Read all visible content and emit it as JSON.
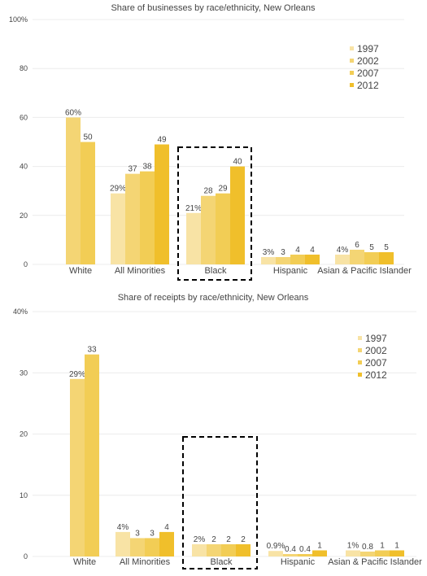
{
  "chart_data": [
    {
      "type": "bar",
      "title": "Share of businesses by race/ethnicity, New Orleans",
      "categories": [
        "White",
        "All Minorities",
        "Black",
        "Hispanic",
        "Asian & Pacific Islander"
      ],
      "series": [
        {
          "name": "1997",
          "values": [
            null,
            29,
            21,
            3,
            4
          ]
        },
        {
          "name": "2002",
          "values": [
            60,
            37,
            28,
            3,
            6
          ]
        },
        {
          "name": "2007",
          "values": [
            50,
            38,
            29,
            4,
            5
          ]
        },
        {
          "name": "2012",
          "values": [
            null,
            49,
            40,
            4,
            5
          ]
        }
      ],
      "value_labels": [
        [
          null,
          "29%",
          "21%",
          "3%",
          "4%"
        ],
        [
          "60%",
          "37",
          "28",
          "3",
          "6"
        ],
        [
          "50",
          "38",
          "29",
          "4",
          "5"
        ],
        [
          null,
          "49",
          "40",
          "4",
          "5"
        ]
      ],
      "y_ticks": [
        0,
        20,
        40,
        60,
        80,
        100
      ],
      "y_tick_labels": [
        "0",
        "20",
        "40",
        "60",
        "80",
        "100%"
      ],
      "ylim": [
        0,
        100
      ],
      "highlight_category": "Black",
      "legend_position": "top-right",
      "grid": true
    },
    {
      "type": "bar",
      "title": "Share of receipts by race/ethnicity, New Orleans",
      "categories": [
        "White",
        "All Minorities",
        "Black",
        "Hispanic",
        "Asian & Pacific Islander"
      ],
      "series": [
        {
          "name": "1997",
          "values": [
            null,
            4,
            2,
            0.9,
            1
          ]
        },
        {
          "name": "2002",
          "values": [
            29,
            3,
            2,
            0.4,
            0.8
          ]
        },
        {
          "name": "2007",
          "values": [
            33,
            3,
            2,
            0.4,
            1
          ]
        },
        {
          "name": "2012",
          "values": [
            null,
            4,
            2,
            1,
            1
          ]
        }
      ],
      "value_labels": [
        [
          null,
          "4%",
          "2%",
          "0.9%",
          "1%"
        ],
        [
          "29%",
          "3",
          "2",
          "0.4",
          "0.8"
        ],
        [
          "33",
          "3",
          "2",
          "0.4",
          "1"
        ],
        [
          null,
          "4",
          "2",
          "1",
          "1"
        ]
      ],
      "y_ticks": [
        0,
        10,
        20,
        30,
        40
      ],
      "y_tick_labels": [
        "0",
        "10",
        "20",
        "30",
        "40%"
      ],
      "ylim": [
        0,
        40
      ],
      "highlight_category": "Black",
      "legend_position": "top-right",
      "grid": true
    }
  ],
  "series_colors": [
    "#f8e3a5",
    "#f4d574",
    "#f2cd55",
    "#f0bf2b"
  ]
}
